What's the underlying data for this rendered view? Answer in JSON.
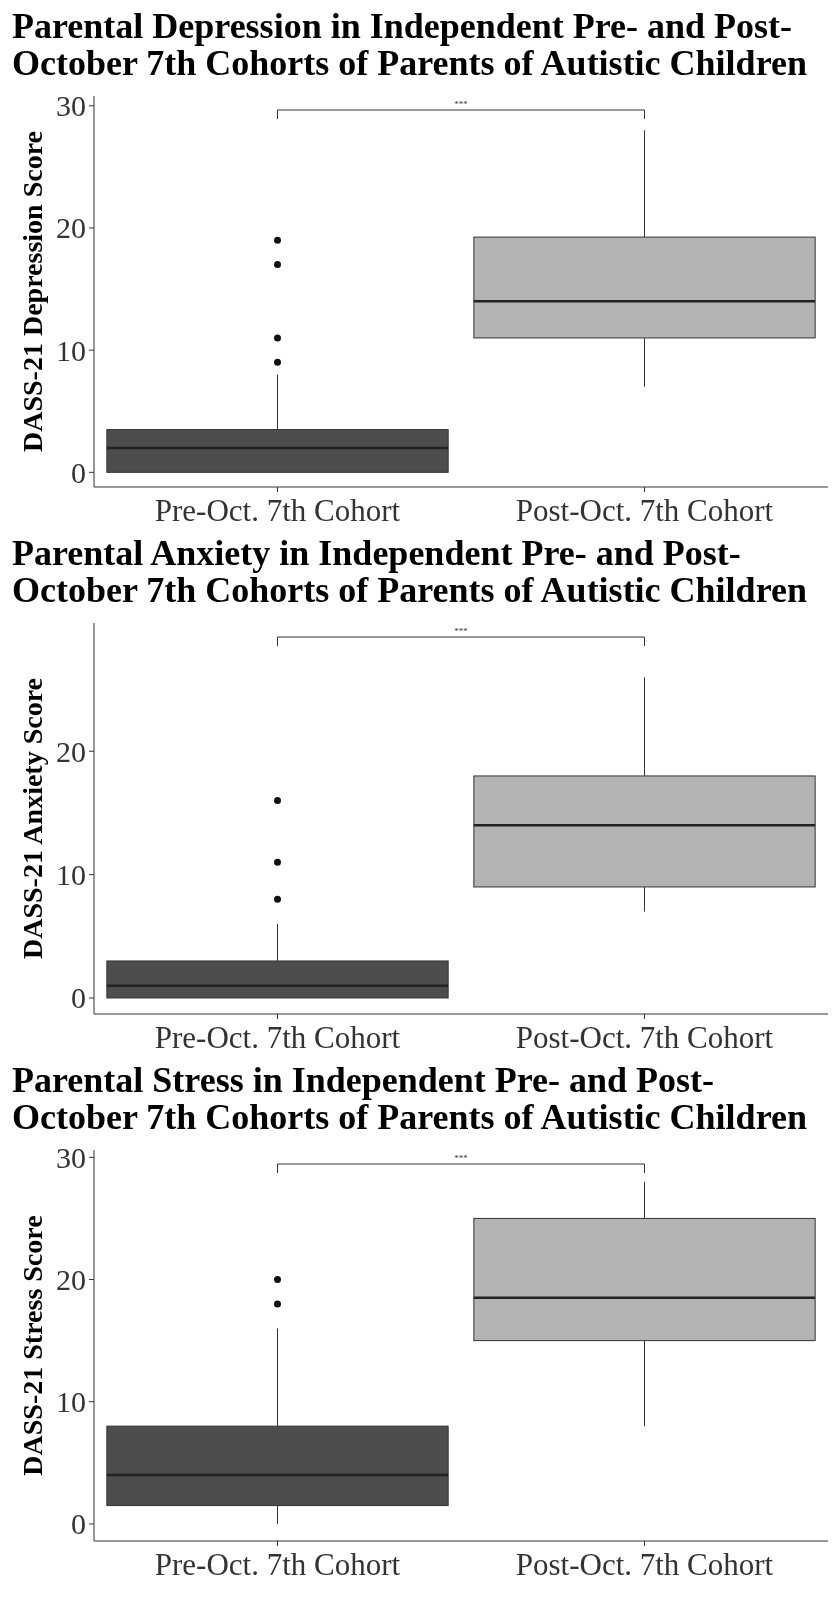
{
  "chart_data": [
    {
      "type": "box",
      "title": "Parental Depression in Independent Pre- and Post-October 7th Cohorts of Parents of Autistic Children",
      "ylabel": "DASS-21 Depression Score",
      "categories": [
        "Pre-Oct. 7th Cohort",
        "Post-Oct. 7th Cohort"
      ],
      "colors": [
        "#4d4d4d",
        "#b3b3b3"
      ],
      "ylim": [
        -1.2,
        30.8
      ],
      "yticks": [
        0,
        10,
        20,
        30
      ],
      "grid": false,
      "annotations": [
        "***"
      ],
      "boxes": [
        {
          "low": 0,
          "q1": 0,
          "median": 2,
          "q3": 3.5,
          "high": 8,
          "outliers": [
            9,
            11,
            17,
            19
          ]
        },
        {
          "low": 7,
          "q1": 11,
          "median": 14,
          "q3": 19.25,
          "high": 28
        }
      ]
    },
    {
      "type": "box",
      "title": "Parental Anxiety in Independent Pre- and Post-October 7th Cohorts of Parents of Autistic Children",
      "ylabel": "DASS-21 Anxiety Score",
      "categories": [
        "Pre-Oct. 7th Cohort",
        "Post-Oct. 7th Cohort"
      ],
      "colors": [
        "#4d4d4d",
        "#b3b3b3"
      ],
      "ylim": [
        -1.3,
        30.4
      ],
      "yticks": [
        0,
        10,
        20
      ],
      "grid": false,
      "annotations": [
        "***"
      ],
      "boxes": [
        {
          "low": 0,
          "q1": 0,
          "median": 1,
          "q3": 3,
          "high": 6,
          "outliers": [
            8,
            11,
            16
          ]
        },
        {
          "low": 7,
          "q1": 9,
          "median": 14,
          "q3": 18,
          "high": 26
        }
      ]
    },
    {
      "type": "box",
      "title": "Parental Stress in Independent Pre- and Post-October 7th Cohorts of Parents of Autistic Children",
      "ylabel": "DASS-21 Stress Score",
      "categories": [
        "Pre-Oct. 7th Cohort",
        "Post-Oct. 7th Cohort"
      ],
      "colors": [
        "#4d4d4d",
        "#b3b3b3"
      ],
      "ylim": [
        -1.4,
        30.6
      ],
      "yticks": [
        0,
        10,
        20,
        30
      ],
      "grid": false,
      "annotations": [
        "***"
      ],
      "boxes": [
        {
          "low": 0,
          "q1": 1.5,
          "median": 4,
          "q3": 8,
          "high": 16,
          "outliers": [
            18,
            20
          ]
        },
        {
          "low": 8,
          "q1": 15,
          "median": 18.5,
          "q3": 25,
          "high": 28
        }
      ]
    }
  ]
}
